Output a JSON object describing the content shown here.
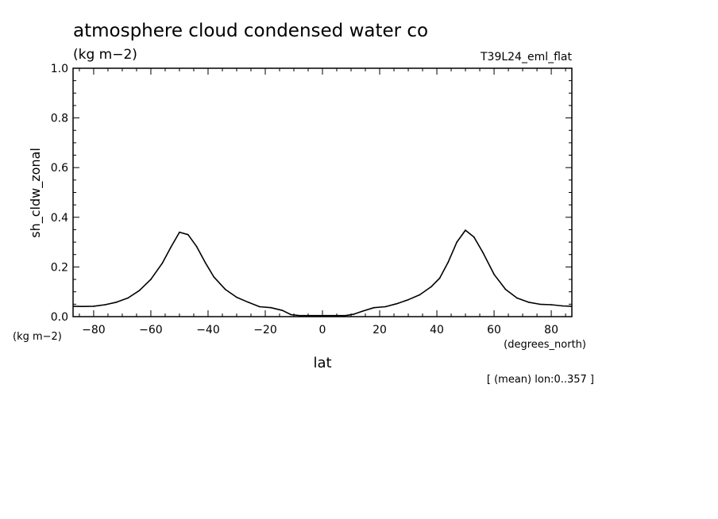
{
  "figure": {
    "title": "atmosphere cloud condensed water co",
    "units": "(kg m−2)",
    "experiment": "T39L24_eml_flat",
    "footnote": "[ (mean) lon:0..357 ]"
  },
  "chart_data": {
    "type": "line",
    "xlabel": "lat",
    "xunits": "(degrees_north)",
    "ylabel": "sh_cldw_zonal",
    "yunits": "(kg m−2)",
    "xlim": [
      -87.2,
      87.2
    ],
    "ylim": [
      0.0,
      1.0
    ],
    "xticks": [
      -80,
      -60,
      -40,
      -20,
      0,
      20,
      40,
      60,
      80
    ],
    "xtick_labels": [
      "−80",
      "−60",
      "−40",
      "−20",
      "0",
      "20",
      "40",
      "60",
      "80"
    ],
    "yticks": [
      0.0,
      0.2,
      0.4,
      0.6,
      0.8,
      1.0
    ],
    "ytick_labels": [
      "0.0",
      "0.2",
      "0.4",
      "0.6",
      "0.8",
      "1.0"
    ],
    "grid": false,
    "line_color": "#000000",
    "series": [
      {
        "x": [
          -87,
          -84,
          -80,
          -76,
          -72,
          -68,
          -64,
          -60,
          -56,
          -53,
          -50,
          -47,
          -44,
          -41,
          -38,
          -34,
          -30,
          -26,
          -22,
          -18,
          -14,
          -11,
          -8,
          -4,
          0,
          4,
          8,
          11,
          14,
          18,
          22,
          26,
          30,
          34,
          38,
          41,
          44,
          47,
          50,
          53,
          56,
          60,
          64,
          68,
          72,
          76,
          80,
          84,
          87
        ],
        "y": [
          0.042,
          0.041,
          0.042,
          0.048,
          0.058,
          0.075,
          0.105,
          0.15,
          0.215,
          0.28,
          0.34,
          0.33,
          0.282,
          0.218,
          0.16,
          0.11,
          0.078,
          0.058,
          0.04,
          0.036,
          0.025,
          0.008,
          0.004,
          0.004,
          0.004,
          0.004,
          0.004,
          0.01,
          0.022,
          0.036,
          0.04,
          0.052,
          0.068,
          0.088,
          0.12,
          0.155,
          0.22,
          0.3,
          0.348,
          0.32,
          0.26,
          0.17,
          0.11,
          0.075,
          0.058,
          0.05,
          0.048,
          0.043,
          0.042
        ]
      }
    ]
  }
}
